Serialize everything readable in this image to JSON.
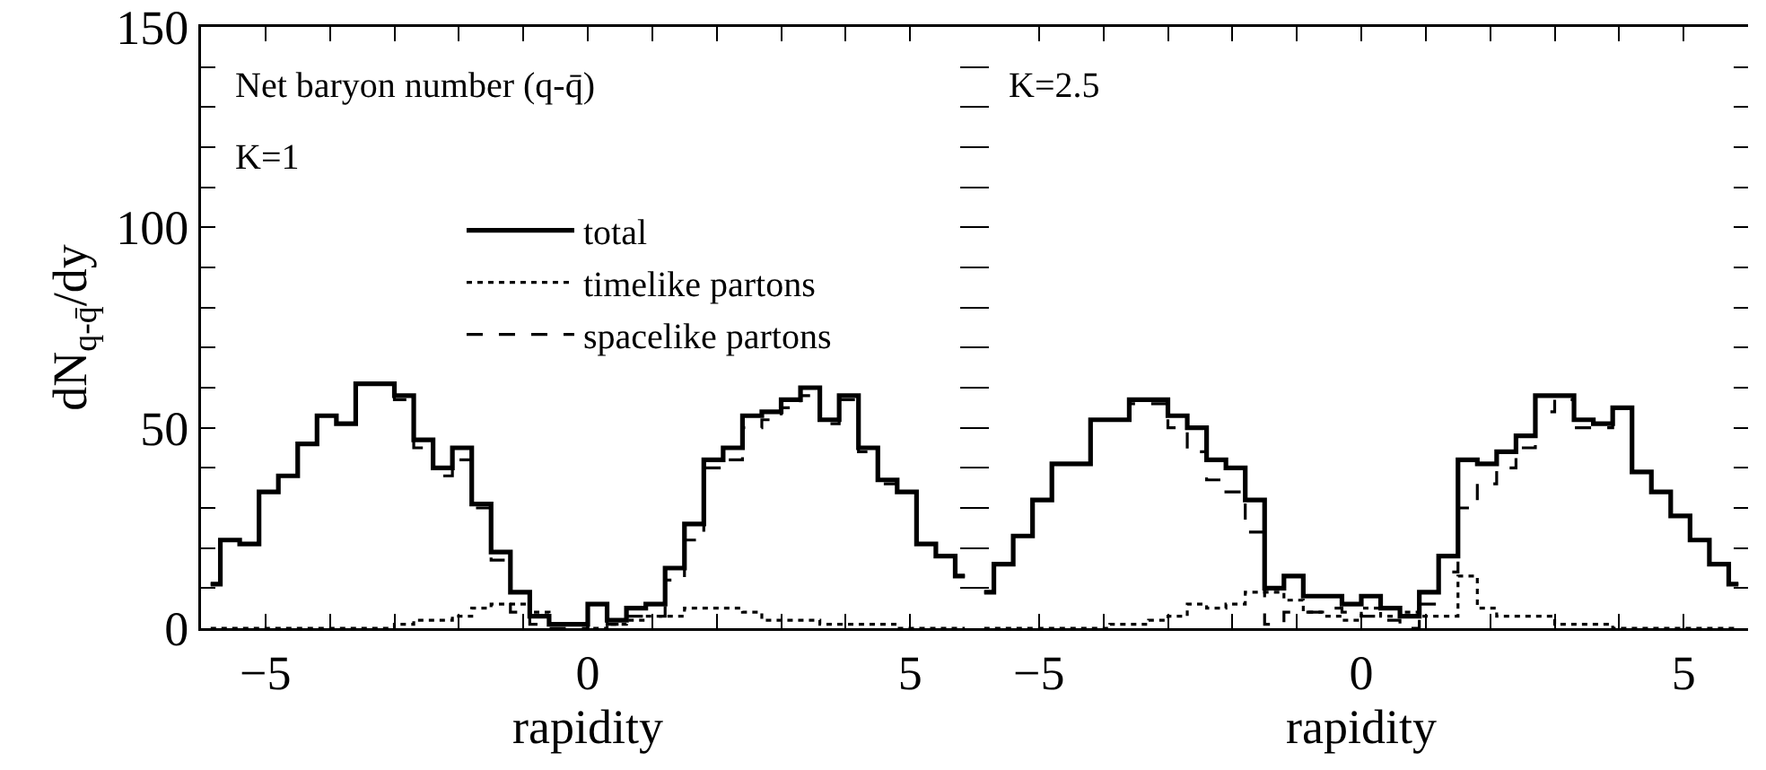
{
  "chart_data": [
    {
      "type": "step",
      "xlabel": "rapidity",
      "ylabel": "dN$_{q-q̄}$/dy",
      "annotations": [
        "Net baryon number (q-q̄)",
        "K=1"
      ],
      "x": [
        -5.85,
        -5.55,
        -5.25,
        -4.95,
        -4.65,
        -4.35,
        -4.05,
        -3.75,
        -3.45,
        -3.15,
        -2.85,
        -2.55,
        -2.25,
        -1.95,
        -1.65,
        -1.35,
        -1.05,
        -0.75,
        -0.45,
        -0.15,
        0.15,
        0.45,
        0.75,
        1.05,
        1.35,
        1.65,
        1.95,
        2.25,
        2.55,
        2.85,
        3.15,
        3.45,
        3.75,
        4.05,
        4.35,
        4.65,
        4.95,
        5.25,
        5.55,
        5.85
      ],
      "series": [
        {
          "name": "total",
          "color": "#000000",
          "line_style": "solid",
          "values": [
            11,
            22,
            21,
            34,
            38,
            46,
            53,
            51,
            61,
            61,
            58,
            47,
            40,
            45,
            31,
            19,
            9,
            3,
            1,
            1,
            6,
            2,
            5,
            6,
            15,
            26,
            42,
            45,
            53,
            54,
            57,
            60,
            52,
            58,
            45,
            37,
            34,
            21,
            18,
            13
          ]
        },
        {
          "name": "timelike partons",
          "color": "#000000",
          "line_style": "dotted",
          "values": [
            0,
            0,
            0,
            0,
            0,
            0,
            0,
            0,
            0,
            0,
            1,
            2,
            2,
            3,
            5,
            6,
            6,
            4,
            1,
            1,
            0,
            1,
            2,
            3,
            3,
            5,
            5,
            5,
            4,
            2,
            2,
            2,
            1,
            1,
            1,
            1,
            0,
            0,
            0,
            0
          ]
        },
        {
          "name": "spacelike partons",
          "color": "#000000",
          "line_style": "dashed",
          "values": [
            11,
            22,
            21,
            34,
            38,
            46,
            53,
            51,
            61,
            61,
            57,
            45,
            38,
            42,
            30,
            17,
            4,
            1,
            0,
            0,
            6,
            1,
            3,
            3,
            12,
            22,
            40,
            42,
            50,
            52,
            55,
            58,
            51,
            57,
            44,
            36,
            34,
            21,
            18,
            13
          ]
        }
      ],
      "xlim": [
        -6,
        6
      ],
      "xticks": [
        {
          "value": -6,
          "label": null
        },
        -5,
        {
          "value": -4,
          "label": null
        },
        {
          "value": -3,
          "label": null
        },
        {
          "value": -2,
          "label": null
        },
        {
          "value": -1,
          "label": null
        },
        0,
        {
          "value": 1,
          "label": null
        },
        {
          "value": 2,
          "label": null
        },
        {
          "value": 3,
          "label": null
        },
        {
          "value": 4,
          "label": null
        },
        5,
        {
          "value": 6,
          "label": null
        }
      ],
      "ylim": [
        0,
        150
      ],
      "yticks": [
        0,
        {
          "value": 10,
          "label": null
        },
        {
          "value": 20,
          "label": null
        },
        {
          "value": 30,
          "label": null
        },
        {
          "value": 40,
          "label": null
        },
        50,
        {
          "value": 60,
          "label": null
        },
        {
          "value": 70,
          "label": null
        },
        {
          "value": 80,
          "label": null
        },
        {
          "value": 90,
          "label": null
        },
        100,
        {
          "value": 110,
          "label": null
        },
        {
          "value": 120,
          "label": null
        },
        {
          "value": 130,
          "label": null
        },
        {
          "value": 140,
          "label": null
        },
        150
      ],
      "legend": "top",
      "grid": false
    },
    {
      "type": "step",
      "xlabel": "rapidity",
      "annotations": [
        "K=2.5"
      ],
      "x": [
        -5.85,
        -5.55,
        -5.25,
        -4.95,
        -4.65,
        -4.35,
        -4.05,
        -3.75,
        -3.45,
        -3.15,
        -2.85,
        -2.55,
        -2.25,
        -1.95,
        -1.65,
        -1.35,
        -1.05,
        -0.75,
        -0.45,
        -0.15,
        0.15,
        0.45,
        0.75,
        1.05,
        1.35,
        1.65,
        1.95,
        2.25,
        2.55,
        2.85,
        3.15,
        3.45,
        3.75,
        4.05,
        4.35,
        4.65,
        4.95,
        5.25,
        5.55,
        5.85
      ],
      "series": [
        {
          "color": "#000000",
          "line_style": "solid",
          "values": [
            9,
            16,
            23,
            32,
            41,
            41,
            52,
            52,
            57,
            57,
            53,
            50,
            42,
            40,
            32,
            10,
            13,
            8,
            8,
            6,
            8,
            5,
            3,
            9,
            18,
            42,
            41,
            44,
            48,
            58,
            58,
            52,
            51,
            55,
            39,
            34,
            28,
            22,
            16,
            11
          ]
        },
        {
          "color": "#000000",
          "line_style": "dotted",
          "values": [
            0,
            0,
            0,
            0,
            0,
            0,
            0,
            1,
            1,
            2,
            3,
            6,
            5,
            6,
            9,
            9,
            7,
            4,
            3,
            2,
            5,
            3,
            4,
            3,
            3,
            13,
            5,
            3,
            3,
            3,
            1,
            1,
            1,
            0,
            0,
            0,
            0,
            0,
            0,
            0
          ]
        },
        {
          "color": "#000000",
          "line_style": "dashed",
          "values": [
            9,
            16,
            23,
            32,
            41,
            41,
            52,
            52,
            56,
            56,
            50,
            44,
            37,
            34,
            24,
            1,
            4,
            4,
            5,
            4,
            3,
            2,
            0,
            6,
            14,
            30,
            36,
            40,
            45,
            54,
            57,
            50,
            50,
            55,
            39,
            34,
            28,
            22,
            16,
            11
          ]
        }
      ],
      "xlim": [
        -6,
        6
      ],
      "xticks": [
        {
          "value": -6,
          "label": null
        },
        -5,
        {
          "value": -4,
          "label": null
        },
        {
          "value": -3,
          "label": null
        },
        {
          "value": -2,
          "label": null
        },
        {
          "value": -1,
          "label": null
        },
        0,
        {
          "value": 1,
          "label": null
        },
        {
          "value": 2,
          "label": null
        },
        {
          "value": 3,
          "label": null
        },
        {
          "value": 4,
          "label": null
        },
        5,
        {
          "value": 6,
          "label": null
        }
      ],
      "ylim": [
        0,
        150
      ],
      "yticks": [
        0,
        {
          "value": 10,
          "label": null
        },
        {
          "value": 20,
          "label": null
        },
        {
          "value": 30,
          "label": null
        },
        {
          "value": 40,
          "label": null
        },
        50,
        {
          "value": 60,
          "label": null
        },
        {
          "value": 70,
          "label": null
        },
        {
          "value": 80,
          "label": null
        },
        {
          "value": 90,
          "label": null
        },
        100,
        {
          "value": 110,
          "label": null
        },
        {
          "value": 120,
          "label": null
        },
        {
          "value": 130,
          "label": null
        },
        {
          "value": 140,
          "label": null
        },
        150
      ],
      "tick_labels": "x",
      "legend": false,
      "grid": false
    }
  ]
}
